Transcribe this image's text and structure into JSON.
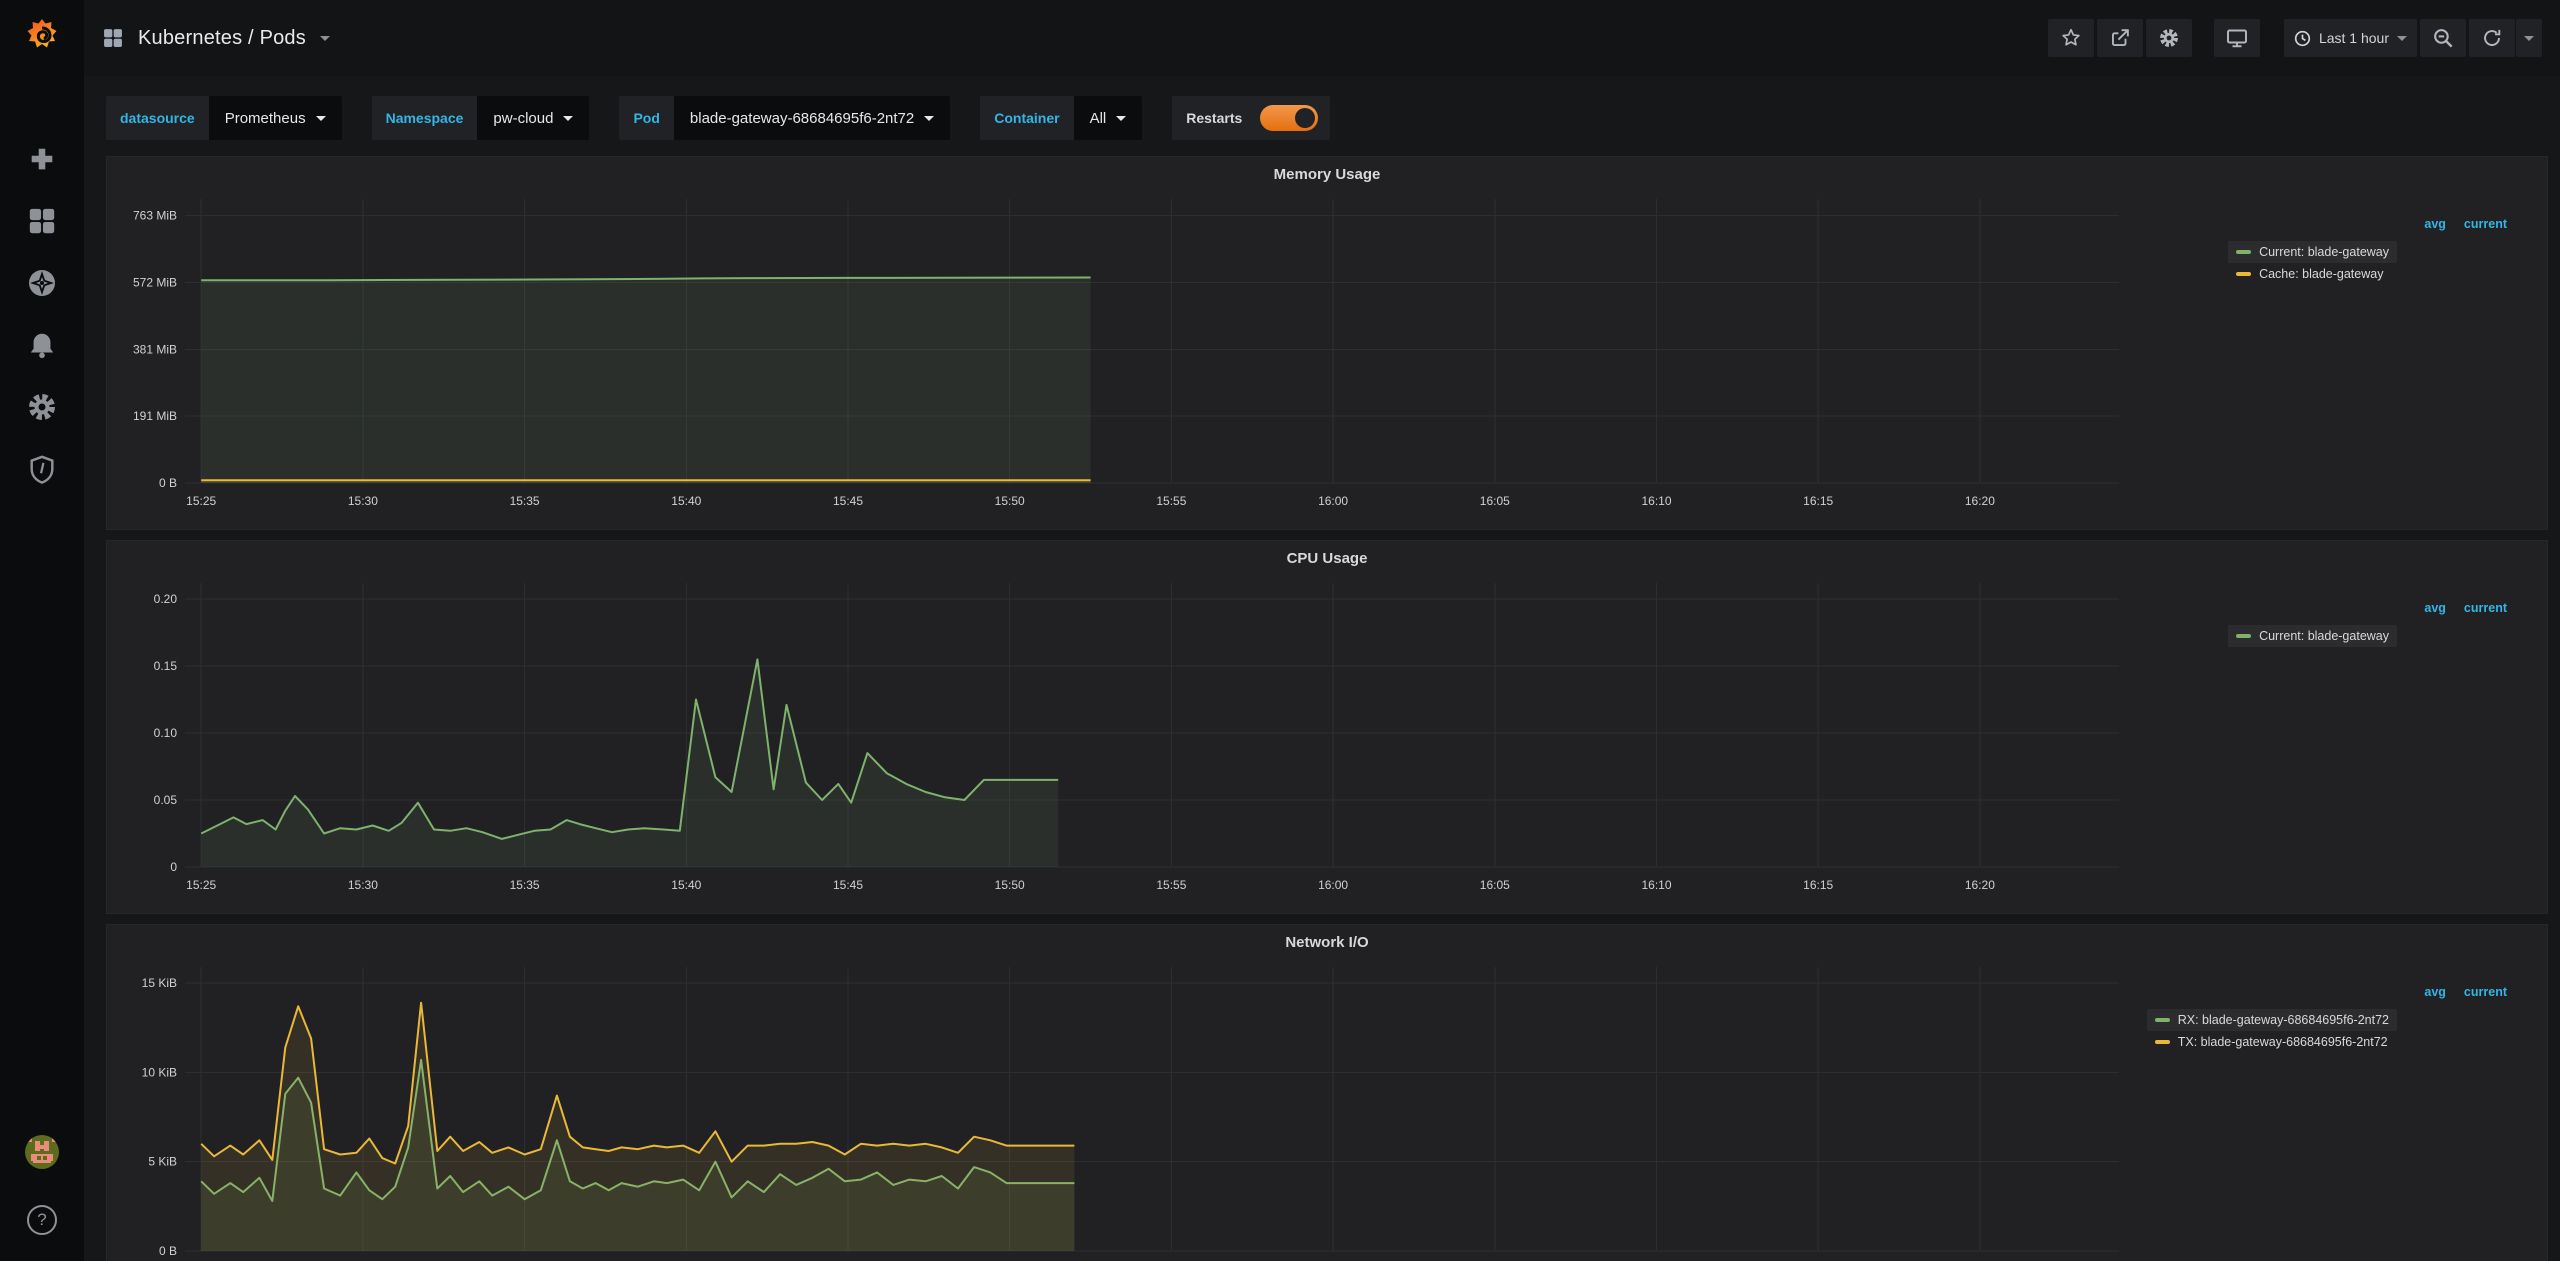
{
  "header": {
    "title": "Kubernetes / Pods",
    "breadcrumb_icon": "apps-grid-icon",
    "toolbar": {
      "buttons": [
        "mark-as-favorite",
        "share-dashboard",
        "dashboard-settings",
        "cycle-view-mode"
      ],
      "time_range": "Last 1 hour",
      "zoom_out": "zoom-out-time-range",
      "refresh": "refresh-dashboard"
    }
  },
  "sidebar": {
    "items": [
      {
        "name": "grafana-logo"
      },
      {
        "name": "create-plus"
      },
      {
        "name": "dashboards"
      },
      {
        "name": "explore"
      },
      {
        "name": "alerting"
      },
      {
        "name": "configuration"
      },
      {
        "name": "server-admin"
      }
    ],
    "bottom": [
      {
        "name": "user-avatar"
      },
      {
        "name": "help",
        "glyph": "?"
      }
    ]
  },
  "filters": [
    {
      "label": "datasource",
      "value": "Prometheus",
      "type": "select"
    },
    {
      "label": "Namespace",
      "value": "pw-cloud",
      "type": "select"
    },
    {
      "label": "Pod",
      "value": "blade-gateway-68684695f6-2nt72",
      "type": "select"
    },
    {
      "label": "Container",
      "value": "All",
      "type": "select"
    },
    {
      "label": "Restarts",
      "type": "toggle",
      "enabled": true
    }
  ],
  "colors": {
    "page_bg": "#161719",
    "panel_bg": "#212124",
    "sidebar_bg": "#0b0c0e",
    "accent": "#33b5e5",
    "green": "#7eb26d",
    "yellow": "#eab839",
    "toggle_orange": "#e56f0e"
  },
  "chart_data": [
    {
      "type": "area",
      "title": "Memory Usage",
      "legend_position": "right",
      "grid": true,
      "legend_columns": [
        "avg",
        "current"
      ],
      "x_tick_step_minutes": 5,
      "x_tick_labels": [
        "15:25",
        "15:30",
        "15:35",
        "15:40",
        "15:45",
        "15:50",
        "15:55",
        "16:00",
        "16:05",
        "16:10",
        "16:15",
        "16:20"
      ],
      "x_min": -0.5,
      "x_max": 59.3,
      "y_max": 810,
      "y_ticks": [
        {
          "v": 0,
          "label": "0 B"
        },
        {
          "v": 191,
          "label": "191 MiB"
        },
        {
          "v": 381,
          "label": "381 MiB"
        },
        {
          "v": 572,
          "label": "572 MiB"
        },
        {
          "v": 763,
          "label": "763 MiB"
        }
      ],
      "unit": "MiB",
      "series": [
        {
          "name": "Current: blade-gateway",
          "color": "#7eb26d",
          "highlighted": true,
          "points": [
            [
              0,
              578
            ],
            [
              4,
              578.5
            ],
            [
              8,
              579.5
            ],
            [
              12,
              581
            ],
            [
              14,
              582
            ],
            [
              15.5,
              583.5
            ],
            [
              17,
              584.5
            ],
            [
              20,
              585
            ],
            [
              23,
              585.5
            ],
            [
              27.5,
              586
            ]
          ]
        },
        {
          "name": "Cache: blade-gateway",
          "color": "#eab839",
          "highlighted": false,
          "points": [
            [
              0,
              8
            ],
            [
              27.5,
              8
            ]
          ]
        }
      ]
    },
    {
      "type": "area",
      "title": "CPU Usage",
      "legend_position": "right",
      "grid": true,
      "legend_columns": [
        "avg",
        "current"
      ],
      "x_tick_step_minutes": 5,
      "x_tick_labels": [
        "15:25",
        "15:30",
        "15:35",
        "15:40",
        "15:45",
        "15:50",
        "15:55",
        "16:00",
        "16:05",
        "16:10",
        "16:15",
        "16:20"
      ],
      "x_min": -0.5,
      "x_max": 59.3,
      "y_max": 0.212,
      "y_ticks": [
        {
          "v": 0,
          "label": "0"
        },
        {
          "v": 0.05,
          "label": "0.05"
        },
        {
          "v": 0.1,
          "label": "0.10"
        },
        {
          "v": 0.15,
          "label": "0.15"
        },
        {
          "v": 0.2,
          "label": "0.20"
        }
      ],
      "unit": "cores",
      "series": [
        {
          "name": "Current: blade-gateway",
          "color": "#7eb26d",
          "highlighted": true,
          "points": [
            [
              0,
              0.025
            ],
            [
              0.5,
              0.031
            ],
            [
              1,
              0.037
            ],
            [
              1.4,
              0.032
            ],
            [
              1.9,
              0.035
            ],
            [
              2.3,
              0.028
            ],
            [
              2.6,
              0.042
            ],
            [
              2.9,
              0.053
            ],
            [
              3.3,
              0.043
            ],
            [
              3.8,
              0.025
            ],
            [
              4.3,
              0.029
            ],
            [
              4.8,
              0.028
            ],
            [
              5.3,
              0.031
            ],
            [
              5.8,
              0.027
            ],
            [
              6.2,
              0.033
            ],
            [
              6.7,
              0.048
            ],
            [
              7.2,
              0.028
            ],
            [
              7.7,
              0.027
            ],
            [
              8.2,
              0.029
            ],
            [
              8.7,
              0.026
            ],
            [
              9.3,
              0.021
            ],
            [
              9.8,
              0.024
            ],
            [
              10.3,
              0.027
            ],
            [
              10.8,
              0.028
            ],
            [
              11.3,
              0.035
            ],
            [
              11.7,
              0.032
            ],
            [
              12.2,
              0.029
            ],
            [
              12.7,
              0.026
            ],
            [
              13.2,
              0.028
            ],
            [
              13.7,
              0.029
            ],
            [
              14.3,
              0.028
            ],
            [
              14.8,
              0.027
            ],
            [
              15.3,
              0.125
            ],
            [
              15.9,
              0.067
            ],
            [
              16.4,
              0.056
            ],
            [
              17.2,
              0.155
            ],
            [
              17.7,
              0.058
            ],
            [
              18.1,
              0.121
            ],
            [
              18.7,
              0.063
            ],
            [
              19.2,
              0.05
            ],
            [
              19.7,
              0.062
            ],
            [
              20.1,
              0.048
            ],
            [
              20.6,
              0.085
            ],
            [
              21.2,
              0.07
            ],
            [
              21.8,
              0.062
            ],
            [
              22.4,
              0.056
            ],
            [
              23,
              0.052
            ],
            [
              23.6,
              0.05
            ],
            [
              24.2,
              0.065
            ],
            [
              26.5,
              0.065
            ]
          ]
        }
      ]
    },
    {
      "type": "area",
      "title": "Network I/O",
      "legend_position": "right",
      "grid": true,
      "legend_columns": [
        "avg",
        "current"
      ],
      "x_tick_step_minutes": 5,
      "x_tick_labels": [
        "15:25",
        "15:30",
        "15:35",
        "15:40",
        "15:45",
        "15:50",
        "15:55",
        "16:00",
        "16:05",
        "16:10",
        "16:15",
        "16:20"
      ],
      "x_min": -0.5,
      "x_max": 59.3,
      "y_max": 15.9,
      "y_ticks": [
        {
          "v": 0,
          "label": "0 B"
        },
        {
          "v": 5,
          "label": "5 KiB"
        },
        {
          "v": 10,
          "label": "10 KiB"
        },
        {
          "v": 15,
          "label": "15 KiB"
        }
      ],
      "unit": "KiB",
      "series": [
        {
          "name": "RX: blade-gateway-68684695f6-2nt72",
          "color": "#7eb26d",
          "highlighted": true,
          "points": [
            [
              0,
              3.9
            ],
            [
              0.4,
              3.2
            ],
            [
              0.9,
              3.8
            ],
            [
              1.3,
              3.3
            ],
            [
              1.8,
              4.1
            ],
            [
              2.2,
              2.8
            ],
            [
              2.6,
              8.8
            ],
            [
              3,
              9.7
            ],
            [
              3.4,
              8.3
            ],
            [
              3.8,
              3.5
            ],
            [
              4.3,
              3.1
            ],
            [
              4.8,
              4.4
            ],
            [
              5.2,
              3.4
            ],
            [
              5.6,
              2.9
            ],
            [
              6,
              3.6
            ],
            [
              6.4,
              5.8
            ],
            [
              6.8,
              10.7
            ],
            [
              7.3,
              3.5
            ],
            [
              7.7,
              4.2
            ],
            [
              8.1,
              3.3
            ],
            [
              8.6,
              3.9
            ],
            [
              9,
              3.1
            ],
            [
              9.5,
              3.6
            ],
            [
              10,
              2.9
            ],
            [
              10.5,
              3.4
            ],
            [
              11,
              6.2
            ],
            [
              11.4,
              3.9
            ],
            [
              11.8,
              3.5
            ],
            [
              12.2,
              3.8
            ],
            [
              12.6,
              3.4
            ],
            [
              13,
              3.8
            ],
            [
              13.5,
              3.6
            ],
            [
              14,
              3.9
            ],
            [
              14.4,
              3.8
            ],
            [
              14.9,
              4
            ],
            [
              15.4,
              3.4
            ],
            [
              15.9,
              5
            ],
            [
              16.4,
              3
            ],
            [
              16.9,
              3.9
            ],
            [
              17.4,
              3.3
            ],
            [
              17.9,
              4.3
            ],
            [
              18.4,
              3.7
            ],
            [
              18.9,
              4.1
            ],
            [
              19.4,
              4.6
            ],
            [
              19.9,
              3.9
            ],
            [
              20.4,
              4
            ],
            [
              20.9,
              4.4
            ],
            [
              21.4,
              3.7
            ],
            [
              21.9,
              4
            ],
            [
              22.4,
              3.9
            ],
            [
              22.9,
              4.2
            ],
            [
              23.4,
              3.5
            ],
            [
              23.9,
              4.7
            ],
            [
              24.4,
              4.4
            ],
            [
              24.9,
              3.8
            ],
            [
              27,
              3.8
            ]
          ]
        },
        {
          "name": "TX: blade-gateway-68684695f6-2nt72",
          "color": "#eab839",
          "highlighted": false,
          "points": [
            [
              0,
              6
            ],
            [
              0.4,
              5.3
            ],
            [
              0.9,
              5.9
            ],
            [
              1.3,
              5.4
            ],
            [
              1.8,
              6.2
            ],
            [
              2.2,
              5.1
            ],
            [
              2.6,
              11.4
            ],
            [
              3,
              13.7
            ],
            [
              3.4,
              11.9
            ],
            [
              3.8,
              5.7
            ],
            [
              4.3,
              5.4
            ],
            [
              4.8,
              5.5
            ],
            [
              5.2,
              6.3
            ],
            [
              5.6,
              5.2
            ],
            [
              6,
              4.9
            ],
            [
              6.4,
              7
            ],
            [
              6.8,
              13.9
            ],
            [
              7.3,
              5.6
            ],
            [
              7.7,
              6.4
            ],
            [
              8.1,
              5.6
            ],
            [
              8.6,
              6.1
            ],
            [
              9,
              5.5
            ],
            [
              9.5,
              5.8
            ],
            [
              10,
              5.4
            ],
            [
              10.5,
              5.7
            ],
            [
              11,
              8.7
            ],
            [
              11.4,
              6.4
            ],
            [
              11.8,
              5.8
            ],
            [
              12.2,
              5.7
            ],
            [
              12.6,
              5.6
            ],
            [
              13,
              5.8
            ],
            [
              13.5,
              5.7
            ],
            [
              14,
              5.9
            ],
            [
              14.4,
              5.8
            ],
            [
              14.9,
              5.9
            ],
            [
              15.4,
              5.5
            ],
            [
              15.9,
              6.7
            ],
            [
              16.4,
              5
            ],
            [
              16.9,
              5.9
            ],
            [
              17.4,
              5.9
            ],
            [
              17.9,
              6
            ],
            [
              18.4,
              6
            ],
            [
              18.9,
              6.1
            ],
            [
              19.4,
              5.9
            ],
            [
              19.9,
              5.4
            ],
            [
              20.4,
              6
            ],
            [
              20.9,
              5.9
            ],
            [
              21.4,
              6
            ],
            [
              21.9,
              5.9
            ],
            [
              22.4,
              6
            ],
            [
              22.9,
              5.8
            ],
            [
              23.4,
              5.5
            ],
            [
              23.9,
              6.4
            ],
            [
              24.4,
              6.2
            ],
            [
              24.9,
              5.9
            ],
            [
              27,
              5.9
            ]
          ]
        }
      ]
    }
  ]
}
